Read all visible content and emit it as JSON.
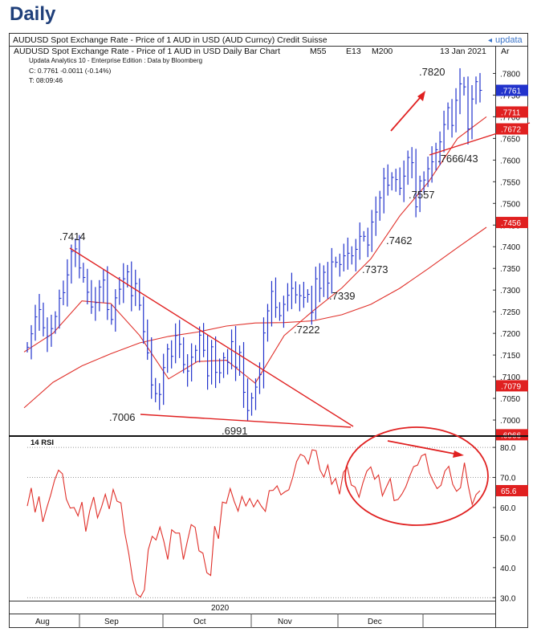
{
  "page": {
    "title": "Daily"
  },
  "header": {
    "title": "AUDUSD Spot Exchange Rate - Price of 1 AUD in USD (AUD Curncy)  Credit Suisse",
    "logo_text": "updata",
    "subtitle": "AUDUSD Spot Exchange Rate - Price of 1 AUD in USD Daily Bar Chart",
    "ind1": "M55",
    "ind2": "E13",
    "ind3": "M200",
    "date": "13 Jan 2021",
    "axis_label": "Ar"
  },
  "info": {
    "line1": "Updata Analytics 10 - Enterprise Edition : Data by Bloomberg",
    "line2": "C: 0.7761  -0.0011 (-0.14%)",
    "line3": "T: 08:09:46"
  },
  "colors": {
    "bars": "#2233cc",
    "ma": "#e0302a",
    "annot": "#e02020",
    "title": "#1f3f7a"
  },
  "chart_data": [
    {
      "type": "line",
      "title": "AUDUSD Spot Exchange Rate - Price of 1 AUD in USD Daily Bar Chart",
      "ylim": [
        0.6963,
        0.7862
      ],
      "price_ticks": [
        ".7800",
        ".7750",
        ".7700",
        ".7650",
        ".7600",
        ".7550",
        ".7500",
        ".7450",
        ".7400",
        ".7350",
        ".7300",
        ".7250",
        ".7200",
        ".7150",
        ".7100",
        ".7050",
        ".7000"
      ],
      "price_tick_values": [
        0.78,
        0.775,
        0.77,
        0.765,
        0.76,
        0.755,
        0.75,
        0.745,
        0.74,
        0.735,
        0.73,
        0.725,
        0.72,
        0.715,
        0.71,
        0.705,
        0.7
      ],
      "months": [
        "Aug",
        "Sep",
        "Oct",
        "Nov",
        "Dec"
      ],
      "year_label": "2020",
      "series": [
        {
          "kind": "bars",
          "values": [
            0.7168,
            0.7199,
            0.7238,
            0.7255,
            0.7213,
            0.7193,
            0.7211,
            0.7239,
            0.7281,
            0.7294,
            0.7335,
            0.7389,
            0.7395,
            0.7351,
            0.7329,
            0.7295,
            0.7261,
            0.7271,
            0.7307,
            0.7323,
            0.7255,
            0.7232,
            0.7282,
            0.7302,
            0.7326,
            0.7342,
            0.7287,
            0.7315,
            0.7265,
            0.7204,
            0.7155,
            0.7081,
            0.7061,
            0.7059,
            0.7121,
            0.7164,
            0.7147,
            0.7195,
            0.7175,
            0.7128,
            0.7113,
            0.7145,
            0.7161,
            0.7196,
            0.7161,
            0.7102,
            0.7169,
            0.711,
            0.7109,
            0.7144,
            0.7133,
            0.7181,
            0.7122,
            0.7156,
            0.7064,
            0.7022,
            0.7051,
            0.7076,
            0.7105,
            0.7201,
            0.7252,
            0.7297,
            0.726,
            0.7241,
            0.7267,
            0.7288,
            0.7304,
            0.7289,
            0.7287,
            0.7283,
            0.729,
            0.7248,
            0.7326,
            0.7304,
            0.7341,
            0.7316,
            0.7365,
            0.7364,
            0.7359,
            0.7379,
            0.7385,
            0.7379,
            0.7394,
            0.7424,
            0.7424,
            0.7404,
            0.7457,
            0.748,
            0.7513,
            0.7558,
            0.7542,
            0.756,
            0.7555,
            0.7535,
            0.7563,
            0.7606,
            0.7594,
            0.7492,
            0.7552,
            0.7554,
            0.758,
            0.7596,
            0.7624,
            0.7642,
            0.7682,
            0.7721,
            0.768,
            0.7738,
            0.7776,
            0.7769,
            0.7672,
            0.7741,
            0.7781,
            0.7761
          ]
        },
        {
          "name": "M55",
          "kind": "ma",
          "values": [
            0.7028,
            0.7087,
            0.7125,
            0.7153,
            0.7178,
            0.7193,
            0.7203,
            0.7217,
            0.7224,
            0.7225,
            0.7229,
            0.7243,
            0.7267,
            0.7304,
            0.735,
            0.7398,
            0.7445
          ]
        },
        {
          "name": "E13",
          "kind": "ema",
          "values": [
            0.7157,
            0.72,
            0.7275,
            0.7269,
            0.7195,
            0.7095,
            0.7135,
            0.7138,
            0.7085,
            0.7195,
            0.7252,
            0.7305,
            0.7372,
            0.7471,
            0.755,
            0.765,
            0.77
          ]
        }
      ],
      "latest_price": 0.7761,
      "price_badges": [
        {
          "text": ".7761",
          "value": 0.7761,
          "color": "#2233cc"
        },
        {
          "text": ".7711",
          "value": 0.7711,
          "color": "#e02020"
        },
        {
          "text": ".7672",
          "value": 0.7672,
          "color": "#e02020"
        },
        {
          "text": ".7456",
          "value": 0.7456,
          "color": "#e02020"
        },
        {
          "text": ".7079",
          "value": 0.7079,
          "color": "#e02020"
        },
        {
          "text": ".6966",
          "value": 0.6966,
          "color": "#e02020"
        }
      ],
      "annotations": [
        ".7414",
        ".7006",
        ".6991",
        ".7222",
        ".7339",
        ".7373",
        ".7462",
        ".7557",
        ".7666/43",
        ".7820"
      ]
    },
    {
      "type": "line",
      "title": "14 RSI",
      "ylim": [
        29.0,
        83.5
      ],
      "rsi_ticks": [
        "80.0",
        "70.0",
        "60.0",
        "50.0",
        "40.0",
        "30.0"
      ],
      "rsi_tick_values": [
        80,
        70,
        60,
        50,
        40,
        30
      ],
      "latest": 65.6,
      "badge": "65.6",
      "values": [
        60.5,
        66.5,
        58.4,
        63.7,
        55.2,
        59.9,
        64.2,
        69.1,
        72.4,
        71.2,
        62.8,
        59.8,
        60.0,
        57.2,
        61.8,
        52.0,
        58.9,
        63.5,
        56.6,
        60.1,
        64.4,
        59.5,
        66.0,
        62.1,
        61.5,
        51.4,
        44.7,
        36.0,
        31.2,
        30.2,
        32.6,
        45.9,
        50.4,
        49.2,
        53.5,
        48.7,
        42.7,
        52.6,
        51.5,
        51.5,
        42.7,
        48.6,
        54.3,
        53.4,
        45.6,
        44.8,
        38.3,
        37.4,
        53.8,
        49.6,
        61.8,
        61.4,
        66.3,
        62.1,
        58.8,
        63.7,
        60.5,
        63.0,
        60.2,
        62.5,
        60.4,
        58.7,
        65.6,
        65.7,
        67.2,
        64.2,
        65.2,
        65.9,
        69.9,
        75.3,
        77.7,
        77.0,
        74.5,
        79.2,
        78.9,
        72.5,
        70.1,
        74.1,
        67.7,
        69.7,
        64.4,
        71.7,
        73.4,
        67.5,
        66.8,
        63.4,
        68.2,
        72.1,
        73.5,
        69.4,
        70.8,
        63.9,
        66.8,
        69.6,
        62.3,
        62.7,
        64.5,
        66.9,
        70.5,
        73.6,
        74.1,
        77.2,
        77.8,
        71.6,
        68.7,
        66.3,
        67.4,
        72.1,
        73.7,
        67.7,
        65.4,
        66.6,
        74.9,
        67.1,
        61.0,
        64.3,
        65.6
      ]
    }
  ]
}
